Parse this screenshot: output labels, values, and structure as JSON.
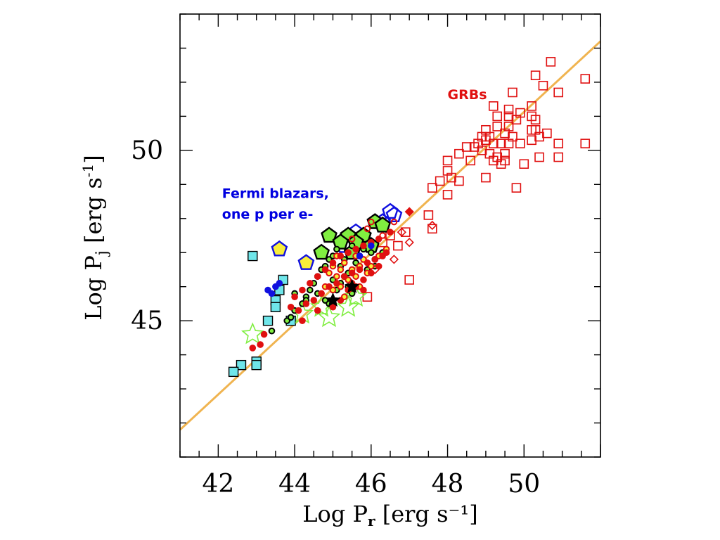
{
  "chart_data": {
    "type": "scatter",
    "xlabel": {
      "main": "Log P",
      "sub": "r",
      "unit": "[erg s⁻¹]"
    },
    "ylabel": {
      "main": "Log P",
      "sub": "j",
      "unit": "[erg s",
      "sup": "-1",
      "close": "]"
    },
    "xlim": [
      41,
      52
    ],
    "ylim": [
      41,
      54
    ],
    "x_ticks": [
      42,
      44,
      46,
      48,
      50
    ],
    "x_tick_labels": [
      "42",
      "44",
      "46",
      "48",
      "50"
    ],
    "y_ticks": [
      45,
      50
    ],
    "y_tick_labels": [
      "45",
      "50"
    ],
    "grid": false,
    "annotations": [
      {
        "text": "GRBs",
        "x": 48.0,
        "y": 51.5,
        "color": "#e01010"
      },
      {
        "text": "Fermi blazars,",
        "x": 42.1,
        "y": 48.6,
        "color": "#0000e0"
      },
      {
        "text": "one p per e-",
        "x": 42.1,
        "y": 48.0,
        "color": "#0000e0"
      }
    ],
    "fit_line": {
      "color": "#f0b450",
      "points": [
        [
          41,
          41.8
        ],
        [
          52,
          53.2
        ]
      ]
    },
    "series": [
      {
        "marker": "square-open",
        "color": "#e01010",
        "fill": "none",
        "points": [
          [
            50.7,
            52.6
          ],
          [
            51.6,
            52.1
          ],
          [
            50.3,
            52.2
          ],
          [
            50.5,
            51.9
          ],
          [
            50.9,
            51.7
          ],
          [
            49.7,
            51.7
          ],
          [
            49.2,
            51.3
          ],
          [
            49.6,
            51.2
          ],
          [
            49.9,
            51.1
          ],
          [
            50.2,
            51.3
          ],
          [
            49.3,
            51.0
          ],
          [
            49.6,
            51.0
          ],
          [
            49.8,
            50.9
          ],
          [
            50.2,
            51.0
          ],
          [
            50.3,
            50.9
          ],
          [
            49.0,
            50.6
          ],
          [
            49.3,
            50.7
          ],
          [
            49.6,
            50.7
          ],
          [
            50.2,
            50.6
          ],
          [
            50.3,
            50.6
          ],
          [
            50.4,
            50.4
          ],
          [
            50.6,
            50.5
          ],
          [
            48.9,
            50.4
          ],
          [
            49.1,
            50.4
          ],
          [
            49.5,
            50.5
          ],
          [
            49.7,
            50.4
          ],
          [
            48.5,
            50.1
          ],
          [
            48.7,
            50.1
          ],
          [
            48.8,
            50.2
          ],
          [
            49.0,
            50.3
          ],
          [
            49.2,
            50.2
          ],
          [
            49.4,
            50.2
          ],
          [
            49.6,
            50.2
          ],
          [
            49.9,
            50.2
          ],
          [
            50.2,
            50.3
          ],
          [
            50.9,
            50.2
          ],
          [
            51.6,
            50.2
          ],
          [
            48.3,
            49.9
          ],
          [
            48.9,
            50.0
          ],
          [
            49.1,
            49.9
          ],
          [
            49.3,
            49.8
          ],
          [
            49.5,
            49.9
          ],
          [
            48.0,
            49.7
          ],
          [
            48.6,
            49.7
          ],
          [
            49.2,
            49.7
          ],
          [
            49.4,
            49.6
          ],
          [
            49.5,
            49.7
          ],
          [
            50.0,
            49.6
          ],
          [
            50.4,
            49.8
          ],
          [
            50.9,
            49.8
          ],
          [
            48.0,
            49.4
          ],
          [
            48.3,
            49.1
          ],
          [
            48.1,
            49.2
          ],
          [
            47.8,
            49.1
          ],
          [
            47.6,
            48.9
          ],
          [
            49.0,
            49.2
          ],
          [
            49.8,
            48.9
          ],
          [
            48.0,
            48.7
          ],
          [
            47.5,
            48.1
          ],
          [
            47.6,
            47.7
          ],
          [
            45.9,
            45.7
          ],
          [
            47.0,
            46.2
          ],
          [
            46.3,
            47.3
          ],
          [
            46.5,
            47.5
          ],
          [
            46.7,
            47.2
          ],
          [
            46.9,
            47.6
          ]
        ]
      },
      {
        "marker": "square-filled",
        "color": "#000000",
        "fill": "#6fe6ea",
        "points": [
          [
            42.9,
            46.9
          ],
          [
            43.7,
            46.2
          ],
          [
            43.5,
            45.6
          ],
          [
            43.6,
            45.9
          ],
          [
            43.5,
            45.4
          ],
          [
            43.3,
            45.0
          ],
          [
            43.9,
            45.0
          ],
          [
            42.6,
            43.7
          ],
          [
            43.0,
            43.8
          ],
          [
            43.0,
            43.7
          ],
          [
            42.4,
            43.5
          ]
        ]
      },
      {
        "marker": "pentagon",
        "color": "#1010e0",
        "fill": "#f8ee3a",
        "points": [
          [
            43.6,
            47.1
          ],
          [
            44.3,
            46.7
          ]
        ]
      },
      {
        "marker": "pentagon",
        "color": "#1010e0",
        "fill": "none",
        "points": [
          [
            46.5,
            48.2
          ],
          [
            46.6,
            48.1
          ],
          [
            46.3,
            47.9
          ],
          [
            45.6,
            47.6
          ],
          [
            45.3,
            47.2
          ]
        ]
      },
      {
        "marker": "pentagon",
        "color": "#000000",
        "fill": "#80ee40",
        "points": [
          [
            44.9,
            47.5
          ],
          [
            45.4,
            47.5
          ],
          [
            45.8,
            47.5
          ],
          [
            46.1,
            47.9
          ],
          [
            46.3,
            47.8
          ],
          [
            45.2,
            47.3
          ],
          [
            45.6,
            47.3
          ],
          [
            46.0,
            47.2
          ],
          [
            44.7,
            47.0
          ],
          [
            45.5,
            47.0
          ]
        ]
      },
      {
        "marker": "star-open",
        "color": "#80ee40",
        "fill": "none",
        "points": [
          [
            42.9,
            44.6
          ],
          [
            44.9,
            45.1
          ],
          [
            45.4,
            45.4
          ],
          [
            45.6,
            45.7
          ],
          [
            44.7,
            45.4
          ],
          [
            44.2,
            45.2
          ]
        ]
      },
      {
        "marker": "circle",
        "color": "#000000",
        "fill": "#80ee40",
        "points": [
          [
            43.8,
            45.0
          ],
          [
            43.9,
            45.1
          ],
          [
            44.0,
            45.3
          ],
          [
            44.2,
            45.5
          ],
          [
            44.3,
            45.7
          ],
          [
            44.4,
            45.9
          ],
          [
            44.5,
            46.1
          ],
          [
            44.6,
            46.3
          ],
          [
            44.7,
            46.5
          ],
          [
            44.8,
            46.6
          ],
          [
            44.9,
            46.8
          ],
          [
            45.0,
            46.9
          ],
          [
            45.1,
            47.1
          ],
          [
            45.2,
            46.6
          ],
          [
            45.3,
            46.3
          ],
          [
            45.4,
            46.0
          ],
          [
            45.5,
            45.8
          ],
          [
            44.6,
            45.8
          ],
          [
            44.8,
            45.6
          ],
          [
            44.9,
            45.5
          ],
          [
            45.1,
            45.9
          ],
          [
            45.2,
            46.1
          ],
          [
            45.4,
            46.4
          ],
          [
            45.6,
            46.7
          ],
          [
            45.7,
            46.9
          ],
          [
            45.8,
            47.1
          ],
          [
            46.0,
            47.0
          ],
          [
            46.1,
            46.8
          ],
          [
            45.9,
            46.5
          ],
          [
            46.1,
            46.6
          ],
          [
            46.3,
            47.0
          ],
          [
            43.4,
            44.7
          ],
          [
            44.3,
            45.6
          ],
          [
            44.0,
            45.8
          ],
          [
            45.0,
            46.2
          ],
          [
            45.3,
            46.8
          ],
          [
            45.5,
            47.2
          ]
        ]
      },
      {
        "marker": "circle",
        "color": "#e01010",
        "fill": "#f8ee3a",
        "points": [
          [
            44.9,
            46.4
          ],
          [
            45.0,
            46.6
          ],
          [
            45.1,
            46.3
          ],
          [
            45.2,
            46.5
          ],
          [
            45.3,
            46.7
          ],
          [
            45.4,
            46.2
          ],
          [
            45.5,
            46.5
          ],
          [
            45.6,
            46.3
          ],
          [
            45.7,
            46.6
          ],
          [
            45.8,
            46.8
          ],
          [
            45.9,
            46.4
          ],
          [
            46.0,
            46.6
          ],
          [
            44.8,
            46.0
          ],
          [
            45.0,
            45.9
          ],
          [
            45.2,
            46.0
          ],
          [
            45.5,
            46.1
          ],
          [
            45.7,
            46.0
          ],
          [
            46.2,
            46.9
          ],
          [
            46.4,
            47.1
          ],
          [
            45.3,
            45.7
          ],
          [
            45.1,
            46.9
          ],
          [
            45.6,
            46.9
          ]
        ]
      },
      {
        "marker": "circle",
        "color": "#e01010",
        "fill": "#e01010",
        "points": [
          [
            44.0,
            45.7
          ],
          [
            44.2,
            45.9
          ],
          [
            44.4,
            46.1
          ],
          [
            44.6,
            46.3
          ],
          [
            44.8,
            46.5
          ],
          [
            45.0,
            46.7
          ],
          [
            45.2,
            46.9
          ],
          [
            45.4,
            47.0
          ],
          [
            45.6,
            47.1
          ],
          [
            45.8,
            47.2
          ],
          [
            46.0,
            47.3
          ],
          [
            46.2,
            47.4
          ],
          [
            46.5,
            47.6
          ],
          [
            44.1,
            45.3
          ],
          [
            44.3,
            45.5
          ],
          [
            44.5,
            45.6
          ],
          [
            44.7,
            45.8
          ],
          [
            44.9,
            46.0
          ],
          [
            45.1,
            46.1
          ],
          [
            45.3,
            46.3
          ],
          [
            45.5,
            46.4
          ],
          [
            45.7,
            46.5
          ],
          [
            45.9,
            46.7
          ],
          [
            46.1,
            46.8
          ],
          [
            46.3,
            46.9
          ],
          [
            45.2,
            45.6
          ],
          [
            45.4,
            45.9
          ],
          [
            45.6,
            46.0
          ],
          [
            45.8,
            46.2
          ],
          [
            46.0,
            46.4
          ],
          [
            46.2,
            46.6
          ],
          [
            43.9,
            45.4
          ],
          [
            44.2,
            45.0
          ],
          [
            43.2,
            44.6
          ],
          [
            43.1,
            44.3
          ],
          [
            42.9,
            44.2
          ],
          [
            44.6,
            45.3
          ],
          [
            45.0,
            45.4
          ],
          [
            45.8,
            45.9
          ],
          [
            46.4,
            47.0
          ]
        ]
      },
      {
        "marker": "circle",
        "color": "#e01010",
        "fill": "none",
        "points": [
          [
            45.9,
            47.7
          ],
          [
            46.3,
            47.5
          ],
          [
            46.6,
            47.9
          ],
          [
            45.5,
            47.4
          ],
          [
            46.0,
            47.9
          ]
        ]
      },
      {
        "marker": "circle",
        "color": "#1010e0",
        "fill": "#1010e0",
        "points": [
          [
            43.5,
            46.0
          ],
          [
            43.3,
            45.9
          ],
          [
            43.4,
            45.8
          ],
          [
            43.6,
            46.1
          ],
          [
            45.7,
            46.9
          ],
          [
            46.0,
            47.2
          ]
        ]
      },
      {
        "marker": "star-filled",
        "color": "#000000",
        "fill": "#000000",
        "points": [
          [
            45.0,
            45.6
          ],
          [
            45.5,
            46.0
          ]
        ]
      },
      {
        "marker": "diamond",
        "color": "#e01010",
        "fill": "none",
        "points": [
          [
            46.6,
            46.8
          ],
          [
            47.0,
            47.3
          ],
          [
            47.6,
            47.8
          ],
          [
            46.1,
            46.5
          ],
          [
            46.8,
            47.6
          ]
        ]
      },
      {
        "marker": "diamond",
        "color": "#e01010",
        "fill": "#e01010",
        "points": [
          [
            47.0,
            48.2
          ]
        ]
      }
    ]
  }
}
